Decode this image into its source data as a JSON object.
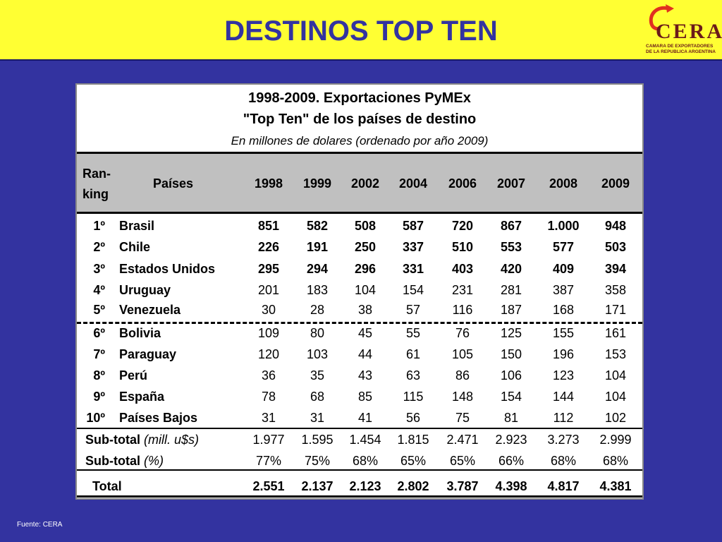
{
  "header": {
    "title": "DESTINOS TOP TEN",
    "logo_word": "CERA",
    "logo_sub_1": "CAMARA DE EXPORTADORES",
    "logo_sub_2": "DE LA REPUBLICA ARGENTINA"
  },
  "table": {
    "title1": "1998-2009. Exportaciones PyMEx",
    "title2": "\"Top Ten\" de los países de destino",
    "title3": "En millones de dolares (ordenado por año 2009)",
    "col_rank_1": "Ran-",
    "col_rank_2": "king",
    "col_country": "Países",
    "years": [
      "1998",
      "1999",
      "2002",
      "2004",
      "2006",
      "2007",
      "2008",
      "2009"
    ],
    "rows": [
      {
        "rank": "1º",
        "country": "Brasil",
        "values": [
          "851",
          "582",
          "508",
          "587",
          "720",
          "867",
          "1.000",
          "948"
        ],
        "bold": true
      },
      {
        "rank": "2º",
        "country": "Chile",
        "values": [
          "226",
          "191",
          "250",
          "337",
          "510",
          "553",
          "577",
          "503"
        ],
        "bold": true
      },
      {
        "rank": "3º",
        "country": "Estados Unidos",
        "values": [
          "295",
          "294",
          "296",
          "331",
          "403",
          "420",
          "409",
          "394"
        ],
        "bold": true
      },
      {
        "rank": "4º",
        "country": "Uruguay",
        "values": [
          "201",
          "183",
          "104",
          "154",
          "231",
          "281",
          "387",
          "358"
        ],
        "bold": false
      },
      {
        "rank": "5º",
        "country": "Venezuela",
        "values": [
          "30",
          "28",
          "38",
          "57",
          "116",
          "187",
          "168",
          "171"
        ],
        "bold": false
      },
      {
        "rank": "6º",
        "country": "Bolivia",
        "values": [
          "109",
          "80",
          "45",
          "55",
          "76",
          "125",
          "155",
          "161"
        ],
        "bold": false
      },
      {
        "rank": "7º",
        "country": "Paraguay",
        "values": [
          "120",
          "103",
          "44",
          "61",
          "105",
          "150",
          "196",
          "153"
        ],
        "bold": false
      },
      {
        "rank": "8º",
        "country": "Perú",
        "values": [
          "36",
          "35",
          "43",
          "63",
          "86",
          "106",
          "123",
          "104"
        ],
        "bold": false
      },
      {
        "rank": "9º",
        "country": "España",
        "values": [
          "78",
          "68",
          "85",
          "115",
          "148",
          "154",
          "144",
          "104"
        ],
        "bold": false
      },
      {
        "rank": "10º",
        "country": "Países Bajos",
        "values": [
          "31",
          "31",
          "41",
          "56",
          "75",
          "81",
          "112",
          "102"
        ],
        "bold": false
      }
    ],
    "subtotal1": {
      "label": "Sub-total",
      "unit": "(mill. u$s)",
      "values": [
        "1.977",
        "1.595",
        "1.454",
        "1.815",
        "2.471",
        "2.923",
        "3.273",
        "2.999"
      ]
    },
    "subtotal2": {
      "label": "Sub-total",
      "unit": "(%)",
      "values": [
        "77%",
        "75%",
        "68%",
        "65%",
        "65%",
        "66%",
        "68%",
        "68%"
      ]
    },
    "total": {
      "label": "Total",
      "values": [
        "2.551",
        "2.137",
        "2.123",
        "2.802",
        "3.787",
        "4.398",
        "4.817",
        "4.381"
      ]
    }
  },
  "source": "Fuente: CERA",
  "colors": {
    "background": "#3333a0",
    "header_band": "#ffff33",
    "title": "#3333a0",
    "table_header": "#c0c0c0",
    "logo": "#6b1a1a",
    "logo_accent": "#e03020"
  }
}
